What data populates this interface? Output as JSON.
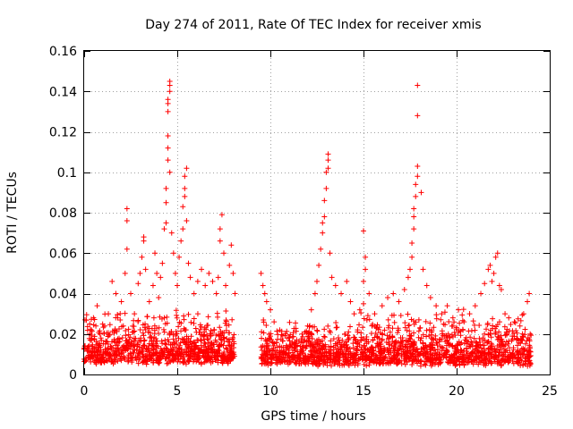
{
  "chart_data": {
    "type": "scatter",
    "title": "Day 274 of 2011, Rate Of TEC Index for receiver xmis",
    "xlabel": "GPS time / hours",
    "ylabel": "ROTI / TECUs",
    "xlim": [
      0,
      25
    ],
    "ylim": [
      0,
      0.16
    ],
    "x_ticks": [
      0,
      5,
      10,
      15,
      20,
      25
    ],
    "x_tick_labels": [
      "0",
      "5",
      "10",
      "15",
      "20",
      "25"
    ],
    "y_ticks": [
      0,
      0.02,
      0.04,
      0.06,
      0.08,
      0.1,
      0.12,
      0.14,
      0.16
    ],
    "y_tick_labels": [
      "0",
      "0.02",
      "0.04",
      "0.06",
      "0.08",
      "0.1",
      "0.12",
      "0.14",
      "0.16"
    ],
    "grid": true,
    "marker": "+",
    "color": "#ff0000",
    "series": [
      {
        "name": "ROTI",
        "points": [
          [
            0.2,
            0.012
          ],
          [
            0.3,
            0.02
          ],
          [
            0.5,
            0.028
          ],
          [
            0.7,
            0.034
          ],
          [
            0.9,
            0.018
          ],
          [
            1.1,
            0.024
          ],
          [
            1.3,
            0.03
          ],
          [
            1.5,
            0.046
          ],
          [
            1.7,
            0.04
          ],
          [
            1.8,
            0.028
          ],
          [
            2.0,
            0.036
          ],
          [
            2.2,
            0.05
          ],
          [
            2.3,
            0.062
          ],
          [
            2.3,
            0.076
          ],
          [
            2.3,
            0.082
          ],
          [
            2.5,
            0.04
          ],
          [
            2.7,
            0.03
          ],
          [
            2.9,
            0.045
          ],
          [
            3.0,
            0.05
          ],
          [
            3.1,
            0.058
          ],
          [
            3.2,
            0.066
          ],
          [
            3.2,
            0.068
          ],
          [
            3.3,
            0.052
          ],
          [
            3.5,
            0.036
          ],
          [
            3.7,
            0.044
          ],
          [
            3.8,
            0.06
          ],
          [
            3.9,
            0.05
          ],
          [
            4.0,
            0.038
          ],
          [
            4.1,
            0.048
          ],
          [
            4.2,
            0.055
          ],
          [
            4.3,
            0.072
          ],
          [
            4.4,
            0.075
          ],
          [
            4.4,
            0.085
          ],
          [
            4.4,
            0.092
          ],
          [
            4.5,
            0.106
          ],
          [
            4.5,
            0.112
          ],
          [
            4.5,
            0.118
          ],
          [
            4.5,
            0.13
          ],
          [
            4.5,
            0.134
          ],
          [
            4.5,
            0.136
          ],
          [
            4.6,
            0.14
          ],
          [
            4.6,
            0.143
          ],
          [
            4.6,
            0.145
          ],
          [
            4.6,
            0.1
          ],
          [
            4.7,
            0.07
          ],
          [
            4.8,
            0.06
          ],
          [
            4.9,
            0.05
          ],
          [
            5.0,
            0.044
          ],
          [
            5.1,
            0.058
          ],
          [
            5.2,
            0.066
          ],
          [
            5.3,
            0.072
          ],
          [
            5.3,
            0.083
          ],
          [
            5.4,
            0.088
          ],
          [
            5.4,
            0.092
          ],
          [
            5.4,
            0.098
          ],
          [
            5.5,
            0.102
          ],
          [
            5.5,
            0.076
          ],
          [
            5.6,
            0.055
          ],
          [
            5.7,
            0.048
          ],
          [
            5.9,
            0.04
          ],
          [
            6.1,
            0.046
          ],
          [
            6.3,
            0.052
          ],
          [
            6.5,
            0.044
          ],
          [
            6.7,
            0.05
          ],
          [
            6.9,
            0.046
          ],
          [
            7.1,
            0.04
          ],
          [
            7.2,
            0.048
          ],
          [
            7.3,
            0.066
          ],
          [
            7.3,
            0.072
          ],
          [
            7.4,
            0.079
          ],
          [
            7.5,
            0.06
          ],
          [
            7.6,
            0.044
          ],
          [
            7.8,
            0.054
          ],
          [
            7.9,
            0.064
          ],
          [
            8.0,
            0.05
          ],
          [
            8.1,
            0.04
          ],
          [
            9.5,
            0.05
          ],
          [
            9.6,
            0.044
          ],
          [
            9.7,
            0.04
          ],
          [
            9.8,
            0.036
          ],
          [
            10.0,
            0.032
          ],
          [
            10.2,
            0.026
          ],
          [
            10.5,
            0.022
          ],
          [
            10.9,
            0.018
          ],
          [
            11.3,
            0.016
          ],
          [
            11.7,
            0.02
          ],
          [
            12.0,
            0.024
          ],
          [
            12.2,
            0.032
          ],
          [
            12.4,
            0.04
          ],
          [
            12.5,
            0.046
          ],
          [
            12.6,
            0.054
          ],
          [
            12.7,
            0.062
          ],
          [
            12.8,
            0.07
          ],
          [
            12.8,
            0.075
          ],
          [
            12.9,
            0.078
          ],
          [
            12.9,
            0.086
          ],
          [
            13.0,
            0.092
          ],
          [
            13.0,
            0.1
          ],
          [
            13.1,
            0.102
          ],
          [
            13.1,
            0.106
          ],
          [
            13.1,
            0.109
          ],
          [
            13.2,
            0.06
          ],
          [
            13.3,
            0.048
          ],
          [
            13.5,
            0.044
          ],
          [
            13.8,
            0.04
          ],
          [
            14.1,
            0.046
          ],
          [
            14.3,
            0.036
          ],
          [
            14.5,
            0.03
          ],
          [
            14.8,
            0.032
          ],
          [
            15.0,
            0.035
          ],
          [
            15.0,
            0.046
          ],
          [
            15.1,
            0.052
          ],
          [
            15.1,
            0.058
          ],
          [
            15.0,
            0.071
          ],
          [
            15.3,
            0.04
          ],
          [
            15.6,
            0.03
          ],
          [
            16.0,
            0.034
          ],
          [
            16.3,
            0.038
          ],
          [
            16.6,
            0.04
          ],
          [
            16.9,
            0.036
          ],
          [
            17.2,
            0.042
          ],
          [
            17.4,
            0.048
          ],
          [
            17.5,
            0.052
          ],
          [
            17.6,
            0.058
          ],
          [
            17.6,
            0.065
          ],
          [
            17.7,
            0.072
          ],
          [
            17.7,
            0.078
          ],
          [
            17.7,
            0.082
          ],
          [
            17.8,
            0.088
          ],
          [
            17.8,
            0.094
          ],
          [
            17.9,
            0.098
          ],
          [
            17.9,
            0.103
          ],
          [
            17.9,
            0.128
          ],
          [
            17.9,
            0.143
          ],
          [
            18.1,
            0.09
          ],
          [
            18.2,
            0.052
          ],
          [
            18.4,
            0.044
          ],
          [
            18.6,
            0.038
          ],
          [
            18.9,
            0.034
          ],
          [
            19.2,
            0.03
          ],
          [
            19.5,
            0.034
          ],
          [
            19.8,
            0.028
          ],
          [
            20.1,
            0.032
          ],
          [
            20.4,
            0.026
          ],
          [
            20.7,
            0.03
          ],
          [
            21.0,
            0.034
          ],
          [
            21.3,
            0.04
          ],
          [
            21.5,
            0.045
          ],
          [
            21.7,
            0.052
          ],
          [
            21.8,
            0.054
          ],
          [
            21.9,
            0.046
          ],
          [
            22.0,
            0.05
          ],
          [
            22.1,
            0.058
          ],
          [
            22.2,
            0.06
          ],
          [
            22.3,
            0.044
          ],
          [
            22.4,
            0.042
          ],
          [
            22.6,
            0.03
          ],
          [
            22.8,
            0.028
          ],
          [
            23.1,
            0.026
          ],
          [
            23.4,
            0.024
          ],
          [
            23.6,
            0.03
          ],
          [
            23.8,
            0.036
          ],
          [
            23.9,
            0.04
          ],
          [
            23.95,
            0.02
          ]
        ],
        "band": {
          "description": "dense noise floor of points",
          "segments": [
            {
              "x": [
                0,
                8.1
              ],
              "y": [
                0.005,
                0.03
              ]
            },
            {
              "x": [
                9.5,
                14.5
              ],
              "y": [
                0.004,
                0.025
              ]
            },
            {
              "x": [
                14.5,
                24
              ],
              "y": [
                0.004,
                0.03
              ]
            }
          ]
        }
      }
    ]
  }
}
